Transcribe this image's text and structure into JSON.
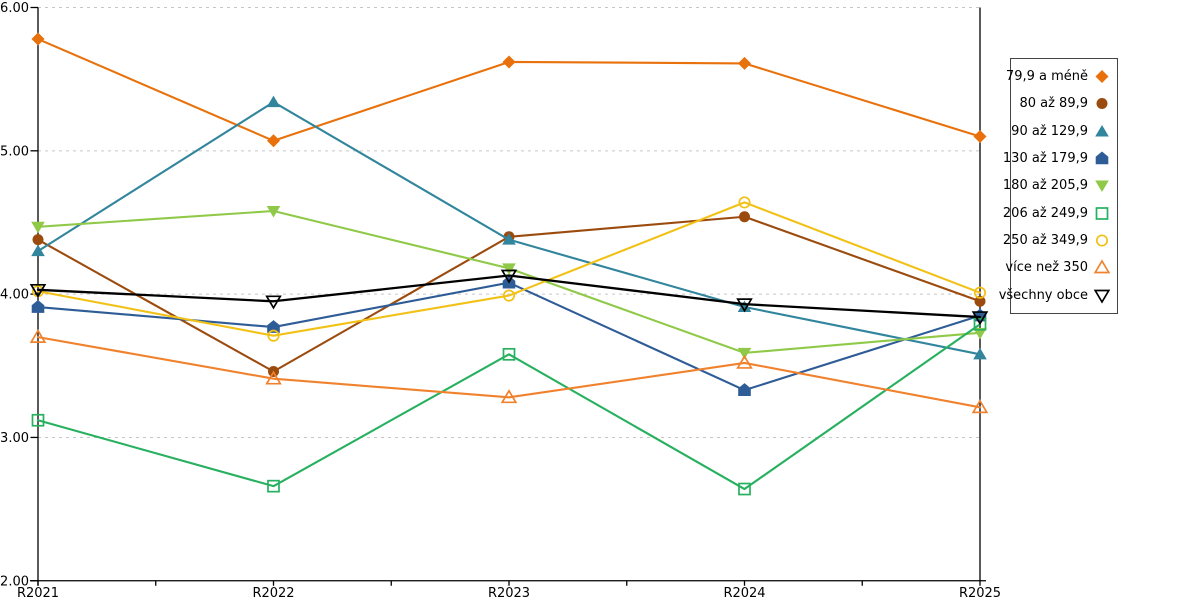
{
  "chart_data": {
    "type": "line",
    "title": "",
    "xlabel": "",
    "ylabel": "",
    "categories": [
      "R2021",
      "R2022",
      "R2023",
      "R2024",
      "R2025"
    ],
    "series": [
      {
        "name": "79,9 a méně",
        "marker": "diamond",
        "fill": "filled",
        "color": "#E8710C",
        "values": [
          5.78,
          5.07,
          5.62,
          5.61,
          5.1
        ]
      },
      {
        "name": "80 až 89,9",
        "marker": "circle",
        "fill": "filled",
        "color": "#9C4B0F",
        "values": [
          4.38,
          3.46,
          4.4,
          4.54,
          3.95
        ]
      },
      {
        "name": "90 až 129,9",
        "marker": "triangle-up",
        "fill": "filled",
        "color": "#31859C",
        "values": [
          4.3,
          5.34,
          4.38,
          3.91,
          3.58
        ]
      },
      {
        "name": "130 až 179,9",
        "marker": "pentagon",
        "fill": "filled",
        "color": "#2E5C97",
        "values": [
          3.91,
          3.77,
          4.08,
          3.33,
          3.85
        ]
      },
      {
        "name": "180 až 205,9",
        "marker": "triangle-down",
        "fill": "filled",
        "color": "#8FC947",
        "values": [
          4.47,
          4.58,
          4.18,
          3.59,
          3.73
        ]
      },
      {
        "name": "206 až 249,9",
        "marker": "square",
        "fill": "open",
        "color": "#27B05F",
        "values": [
          3.12,
          2.66,
          3.58,
          2.64,
          3.79
        ]
      },
      {
        "name": "250 až 349,9",
        "marker": "circle",
        "fill": "open",
        "color": "#F2C115",
        "values": [
          4.02,
          3.71,
          3.99,
          4.64,
          4.01
        ]
      },
      {
        "name": "více než 350",
        "marker": "triangle-up",
        "fill": "open",
        "color": "#F0822D",
        "values": [
          3.7,
          3.41,
          3.28,
          3.52,
          3.21
        ]
      },
      {
        "name": "všechny obce",
        "marker": "triangle-down",
        "fill": "open",
        "color": "#000000",
        "values": [
          4.03,
          3.95,
          4.13,
          3.93,
          3.84
        ]
      }
    ],
    "ylim": [
      2,
      6
    ],
    "ytick_values": [
      6,
      5,
      4,
      3,
      2
    ],
    "ytick_labels": [
      "6.00",
      "5.00",
      "4.00",
      "3.00",
      "2.00"
    ],
    "grid": "horizontal-dashed",
    "gridline_color": "#C6C6C6",
    "axis_color": "#000000",
    "legend_position": "right"
  }
}
